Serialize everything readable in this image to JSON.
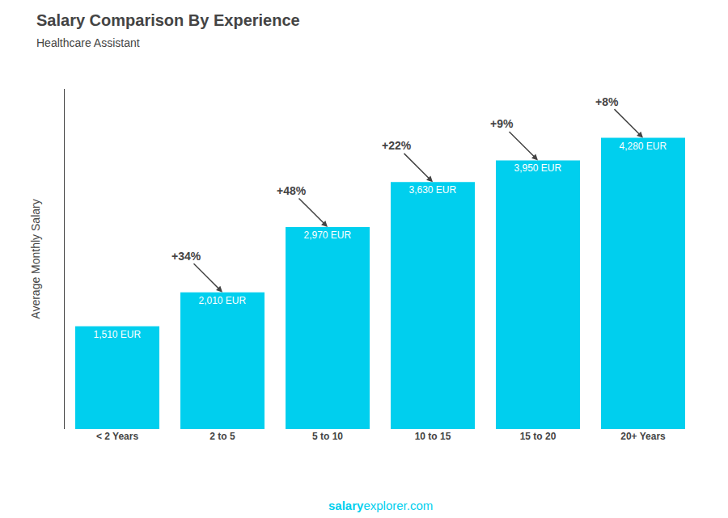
{
  "chart_data": {
    "type": "bar",
    "title": "Salary Comparison By Experience",
    "subtitle": "Healthcare Assistant",
    "categories": [
      "< 2 Years",
      "2 to 5",
      "5 to 10",
      "10 to 15",
      "15 to 20",
      "20+ Years"
    ],
    "values": [
      1510,
      2010,
      2970,
      3630,
      3950,
      4280
    ],
    "value_labels": [
      "1,510 EUR",
      "2,010 EUR",
      "2,970 EUR",
      "3,630 EUR",
      "3,950 EUR",
      "4,280 EUR"
    ],
    "data_labels": true,
    "color": "#00cfee",
    "ylabel": "Average Monthly Salary",
    "annotations": [
      "+34%",
      "+48%",
      "+22%",
      "+9%",
      "+8%"
    ],
    "footer": [
      "salary",
      "explorer.com"
    ],
    "ylim": [
      0,
      5000
    ],
    "tick_labels": "x",
    "grid": false
  }
}
